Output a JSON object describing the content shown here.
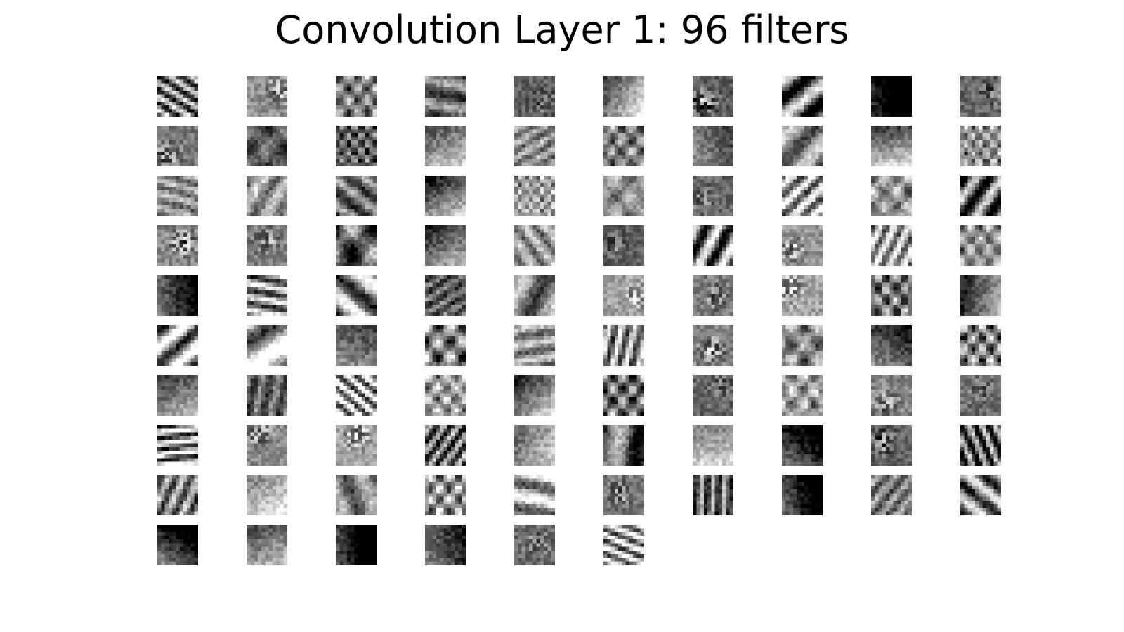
{
  "figure": {
    "title": "Convolution Layer 1: 96 filters",
    "grid": {
      "columns": 10,
      "rows": 10,
      "filter_count": 96,
      "kernel_resolution": 11
    },
    "palette": {
      "background": "#ffffff",
      "dark": "#000000",
      "light": "#ffffff",
      "colormap": "grayscale"
    }
  }
}
